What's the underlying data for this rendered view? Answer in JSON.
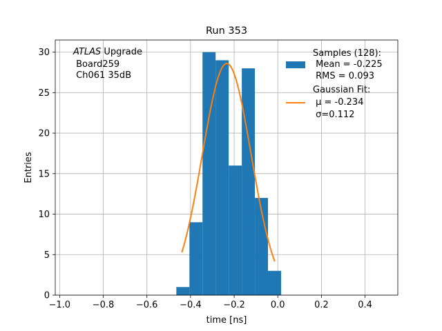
{
  "chart_data": {
    "type": "bar",
    "title": "Run 353",
    "xlabel": "time [ns]",
    "ylabel": "Entries",
    "xlim": [
      -1.02,
      0.55
    ],
    "ylim": [
      0,
      31.5
    ],
    "grid": true,
    "x_ticks": [
      -1.0,
      -0.8,
      -0.6,
      -0.4,
      -0.2,
      0.0,
      0.2,
      0.4
    ],
    "x_tick_labels": [
      "−1.0",
      "−0.8",
      "−0.6",
      "−0.4",
      "−0.2",
      "0.0",
      "0.2",
      "0.4"
    ],
    "y_ticks": [
      0,
      5,
      10,
      15,
      20,
      25,
      30
    ],
    "y_tick_labels": [
      "0",
      "5",
      "10",
      "15",
      "20",
      "25",
      "30"
    ],
    "annotation": {
      "italic": "ATLAS",
      "line1_rest": " Upgrade",
      "line2": " Board259",
      "line3": " Ch061 35dB"
    },
    "legend_position": "top-right",
    "histogram": {
      "name_lines": [
        "Samples (128):",
        " Mean = -0.225",
        " RMS = 0.093"
      ],
      "color": "#1f77b4",
      "bins": [
        {
          "x0": -0.465,
          "x1": -0.405,
          "count": 1
        },
        {
          "x0": -0.405,
          "x1": -0.345,
          "count": 9
        },
        {
          "x0": -0.345,
          "x1": -0.285,
          "count": 30
        },
        {
          "x0": -0.285,
          "x1": -0.225,
          "count": 29
        },
        {
          "x0": -0.225,
          "x1": -0.165,
          "count": 16
        },
        {
          "x0": -0.165,
          "x1": -0.105,
          "count": 28
        },
        {
          "x0": -0.105,
          "x1": -0.045,
          "count": 12
        },
        {
          "x0": -0.045,
          "x1": 0.015,
          "count": 3
        }
      ]
    },
    "fit": {
      "name_lines": [
        "Gaussian Fit:",
        " μ = -0.234",
        " σ=0.112"
      ],
      "color": "#ff7f0e",
      "mu": -0.234,
      "sigma": 0.112,
      "amplitude": 28.6,
      "x_range": [
        -0.44,
        -0.014
      ]
    }
  }
}
